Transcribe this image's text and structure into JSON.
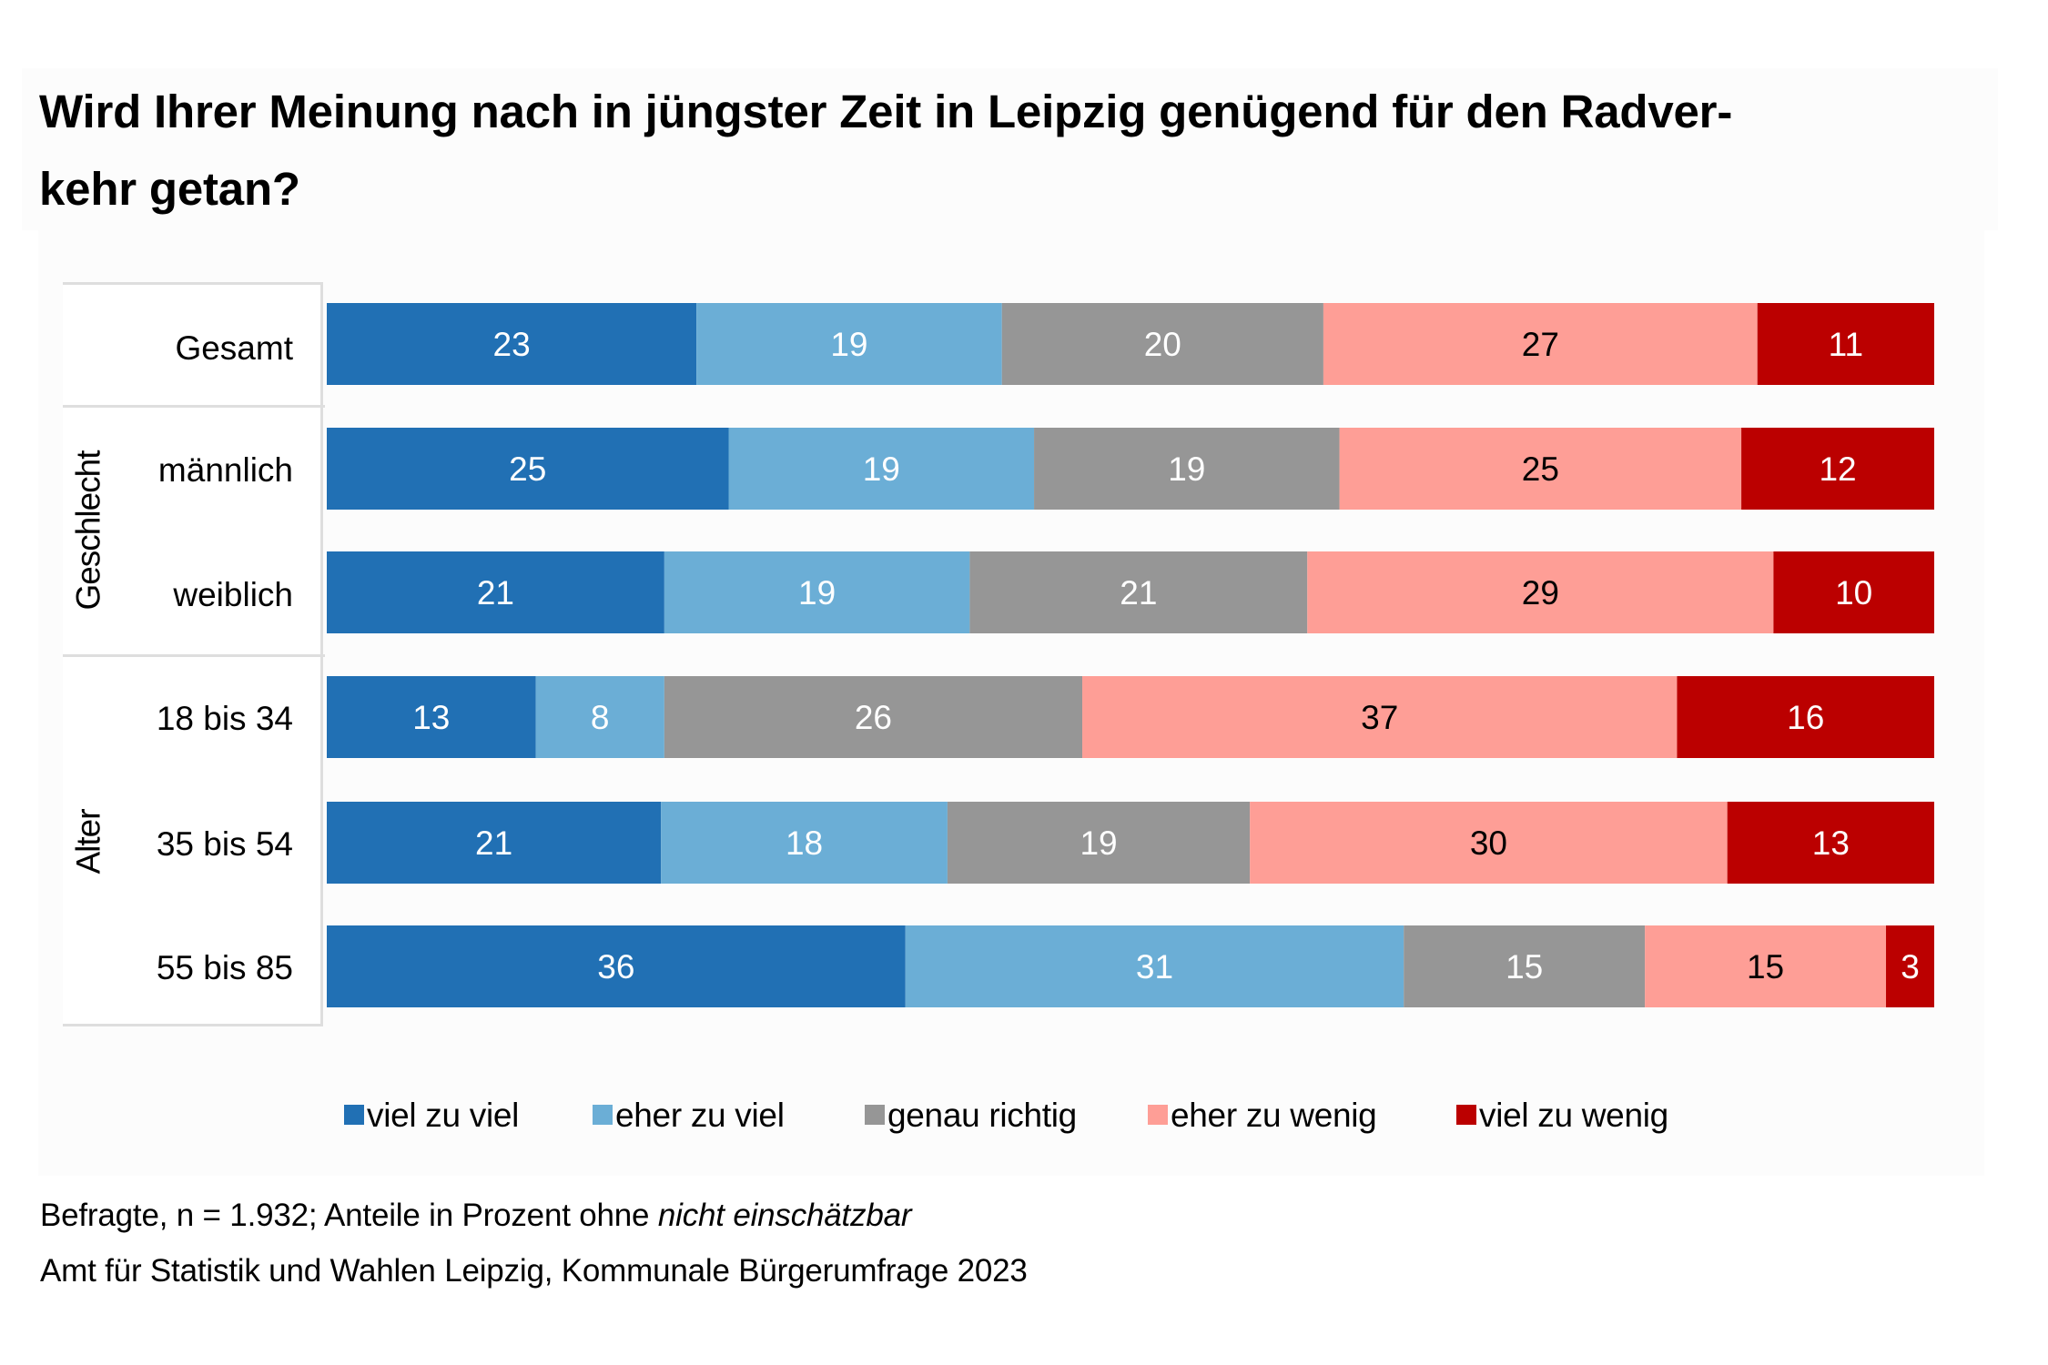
{
  "title": {
    "line1": "Wird Ihrer Meinung nach in jüngster Zeit in Leipzig genügend für den Radver-",
    "line2": "kehr getan?"
  },
  "groups": [
    {
      "label": "",
      "rows": [
        "Gesamt"
      ]
    },
    {
      "label": "Geschlecht",
      "rows": [
        "männlich",
        "weiblich"
      ]
    },
    {
      "label": "Alter",
      "rows": [
        "18 bis 34",
        "35 bis 54",
        "55 bis 85"
      ]
    }
  ],
  "legend": [
    {
      "label": "viel zu viel",
      "color": "#2170b4"
    },
    {
      "label": "eher zu viel",
      "color": "#6baed6"
    },
    {
      "label": "genau richtig",
      "color": "#969696"
    },
    {
      "label": "eher zu wenig",
      "color": "#fe9e96"
    },
    {
      "label": "viel zu wenig",
      "color": "#bb0000"
    }
  ],
  "footer": {
    "line1_prefix": "Befragte, n = 1.932; Anteile in Prozent ohne ",
    "line1_italic": "nicht einschätzbar",
    "line2": "Amt für Statistik und Wahlen Leipzig, Kommunale Bürgerumfrage 2023"
  },
  "chart_data": {
    "type": "bar",
    "orientation": "horizontal",
    "stacked": true,
    "normalized": true,
    "title": "Wird Ihrer Meinung nach in jüngster Zeit in Leipzig genügend für den Radverkehr getan?",
    "xlabel": "",
    "ylabel": "",
    "unit": "Prozent",
    "grid": false,
    "legend_position": "bottom",
    "categories": [
      "Gesamt",
      "männlich",
      "weiblich",
      "18 bis 34",
      "35 bis 54",
      "55 bis 85"
    ],
    "category_groups": {
      "Gesamt": "",
      "männlich": "Geschlecht",
      "weiblich": "Geschlecht",
      "18 bis 34": "Alter",
      "35 bis 54": "Alter",
      "55 bis 85": "Alter"
    },
    "series": [
      {
        "name": "viel zu viel",
        "color": "#2170b4",
        "label_color": "#ffffff",
        "values": [
          23,
          25,
          21,
          13,
          21,
          36
        ]
      },
      {
        "name": "eher zu viel",
        "color": "#6baed6",
        "label_color": "#ffffff",
        "values": [
          19,
          19,
          19,
          8,
          18,
          31
        ]
      },
      {
        "name": "genau richtig",
        "color": "#969696",
        "label_color": "#ffffff",
        "values": [
          20,
          19,
          21,
          26,
          19,
          15
        ]
      },
      {
        "name": "eher zu wenig",
        "color": "#fe9e96",
        "label_color": "#000000",
        "values": [
          27,
          25,
          29,
          37,
          30,
          15
        ]
      },
      {
        "name": "viel zu wenig",
        "color": "#bb0000",
        "label_color": "#ffffff",
        "values": [
          11,
          12,
          10,
          16,
          13,
          3
        ]
      }
    ]
  }
}
